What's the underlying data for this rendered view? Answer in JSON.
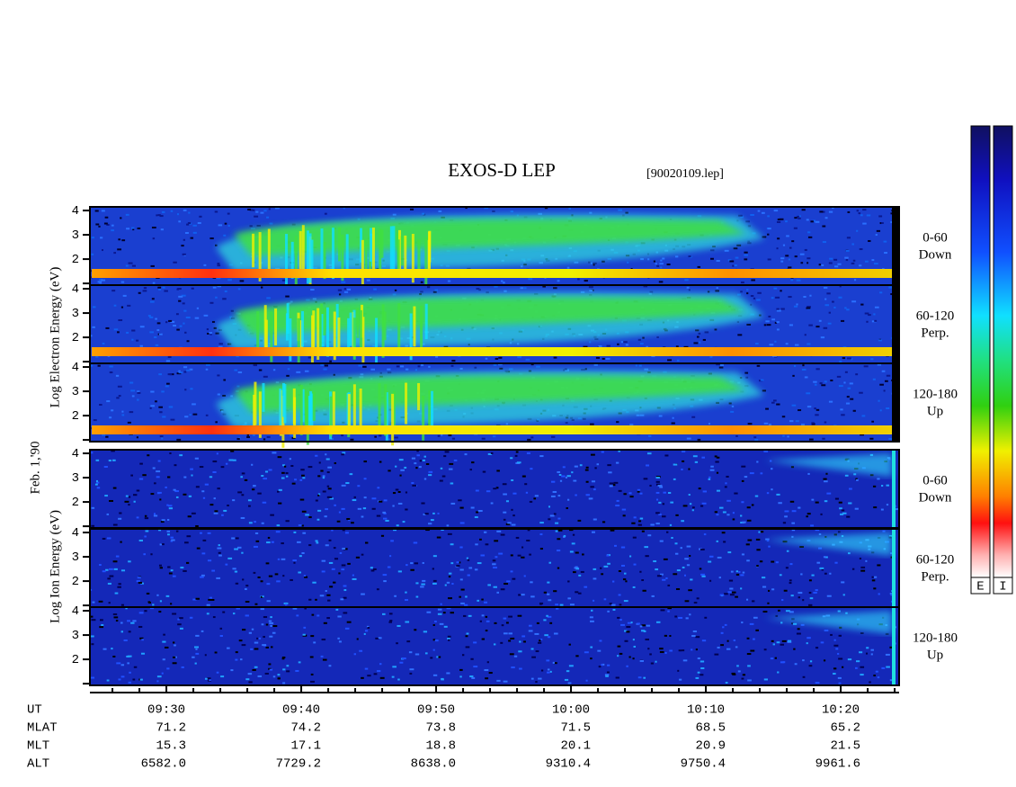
{
  "title": "EXOS-D LEP",
  "file": "[90020109.lep]",
  "date": "Feb. 1,'90",
  "electron": {
    "ylabel": "Log Electron Energy (eV)",
    "panels": [
      {
        "range": "0-60",
        "direction": "Down"
      },
      {
        "range": "60-120",
        "direction": "Perp."
      },
      {
        "range": "120-180",
        "direction": "Up"
      }
    ]
  },
  "ion": {
    "ylabel": "Log Ion Energy (eV)",
    "panels": [
      {
        "range": "0-60",
        "direction": "Down"
      },
      {
        "range": "60-120",
        "direction": "Perp."
      },
      {
        "range": "120-180",
        "direction": "Up"
      }
    ]
  },
  "energy_axis": {
    "ylim": [
      0.93,
      4.15
    ],
    "yticks": [
      2,
      3,
      4
    ],
    "yminorticks": [
      1
    ]
  },
  "time_axis": {
    "xlim": [
      564.33,
      624.33
    ],
    "xticks": [
      {
        "value": 570,
        "label": "09:30"
      },
      {
        "value": 580,
        "label": "09:40"
      },
      {
        "value": 590,
        "label": "09:50"
      },
      {
        "value": 600,
        "label": "10:00"
      },
      {
        "value": 610,
        "label": "10:10"
      },
      {
        "value": 620,
        "label": "10:20"
      }
    ],
    "xminorticks": [
      566,
      568,
      572,
      574,
      576,
      578,
      582,
      584,
      586,
      588,
      592,
      594,
      596,
      598,
      602,
      604,
      606,
      608,
      612,
      614,
      616,
      618,
      622,
      624
    ]
  },
  "ephemeris": {
    "time_label": "UT",
    "rows": [
      {
        "name": "MLAT",
        "values": [
          "71.2",
          "74.2",
          "73.8",
          "71.5",
          "68.5",
          "65.2"
        ]
      },
      {
        "name": "MLT",
        "values": [
          "15.3",
          "17.1",
          "18.8",
          "20.1",
          "20.9",
          "21.5"
        ]
      },
      {
        "name": "ALT",
        "values": [
          "6582.0",
          "7729.2",
          "8638.0",
          "9310.4",
          "9750.4",
          "9961.6"
        ]
      }
    ]
  },
  "colorbars": [
    "E",
    "I"
  ]
}
